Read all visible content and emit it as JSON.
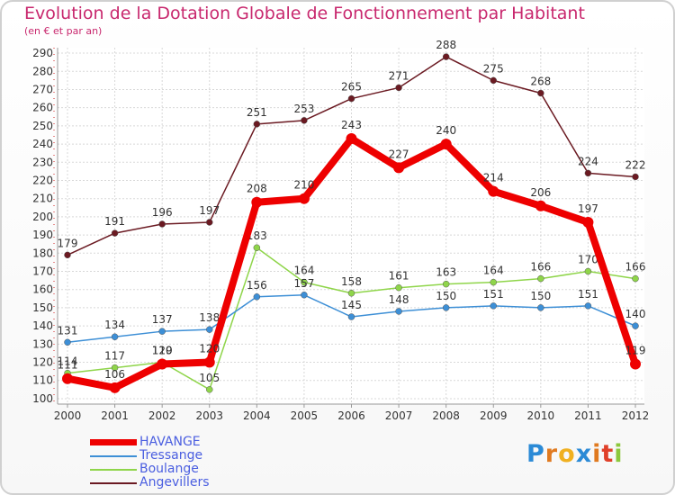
{
  "header": {
    "title": "Evolution de la Dotation Globale de Fonctionnement par Habitant",
    "subtitle": "(en € et par an)"
  },
  "chart_data": {
    "type": "line",
    "title": "Evolution de la Dotation Globale de Fonctionnement par Habitant",
    "subtitle": "(en € et par an)",
    "xlabel": "",
    "ylabel": "",
    "categories": [
      "2000",
      "2001",
      "2002",
      "2003",
      "2004",
      "2005",
      "2006",
      "2007",
      "2008",
      "2009",
      "2010",
      "2011",
      "2012"
    ],
    "yticks": [
      100,
      110,
      120,
      130,
      140,
      150,
      160,
      170,
      180,
      190,
      200,
      210,
      220,
      230,
      240,
      250,
      260,
      270,
      280,
      290
    ],
    "ylim": [
      97,
      293
    ],
    "grid": true,
    "legend_position": "bottom-left",
    "series": [
      {
        "name": "Angevillers",
        "color": "#6b1a22",
        "labels": true,
        "values": [
          179,
          191,
          196,
          197,
          251,
          253,
          265,
          271,
          288,
          275,
          268,
          224,
          222
        ]
      },
      {
        "name": "Boulange",
        "color": "#8fd54a",
        "labels": true,
        "values": [
          114,
          117,
          120,
          105,
          183,
          164,
          158,
          161,
          163,
          164,
          166,
          170,
          166
        ]
      },
      {
        "name": "Tressange",
        "color": "#3d8fd6",
        "labels": true,
        "values": [
          131,
          134,
          137,
          138,
          156,
          157,
          145,
          148,
          150,
          151,
          150,
          151,
          140
        ]
      },
      {
        "name": "HAVANGE",
        "color": "#ee0000",
        "labels": true,
        "bold": true,
        "values": [
          111,
          106,
          119,
          120,
          208,
          210,
          243,
          227,
          240,
          214,
          206,
          197,
          119
        ]
      }
    ]
  },
  "legend": {
    "items": [
      {
        "label": "HAVANGE",
        "color": "#ee0000",
        "thick": true
      },
      {
        "label": "Tressange",
        "color": "#3d8fd6",
        "thick": false
      },
      {
        "label": "Boulange",
        "color": "#8fd54a",
        "thick": false
      },
      {
        "label": "Angevillers",
        "color": "#6b1a22",
        "thick": false
      }
    ]
  },
  "logo": {
    "letters": [
      "P",
      "r",
      "o",
      "x",
      "i",
      "t",
      "i"
    ],
    "colors": [
      "#2b8ad6",
      "#e07a20",
      "#f0b020",
      "#2b8ad6",
      "#e07a20",
      "#e0402a",
      "#8cc83c"
    ]
  }
}
